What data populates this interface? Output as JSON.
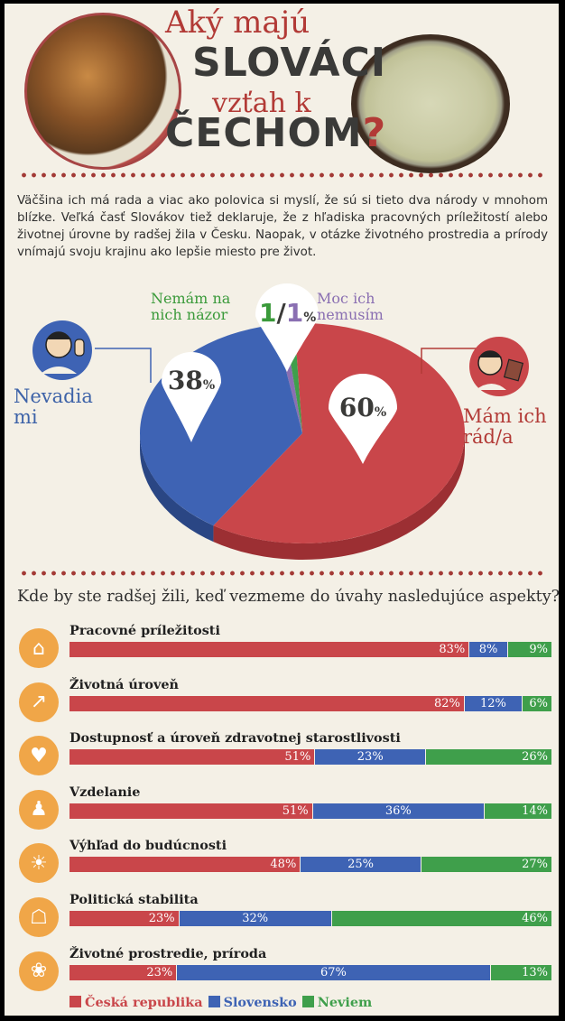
{
  "title": {
    "line1": "Aký majú",
    "line2": "SLOVÁCI",
    "line3": "vzťah k",
    "line4": "ČECHOM",
    "question_mark": "?"
  },
  "intro": "Väčšina ich má rada a viac ako polovica si myslí, že sú si tieto dva národy v mnohom blízke. Veľká časť Slovákov tiež deklaruje, že z hľadiska pracovných príležitostí alebo životnej úrovne by radšej žila v Česku. Naopak, v otázke životného prostredia a prírody vnímajú svoju krajinu ako lepšie miesto pre život.",
  "colors": {
    "red": "#c9464a",
    "blue": "#3e63b4",
    "green": "#3f9f4b",
    "purple": "#8a6fb2",
    "orange": "#f0a648"
  },
  "question": "Kde by ste radšej žili, keď vezmeme do úvahy nasledujúce aspekty?",
  "chart_data": [
    {
      "type": "pie",
      "title": "",
      "slices": [
        {
          "label": "Mám ich rád/a",
          "value": 60,
          "color": "#c9464a"
        },
        {
          "label": "Nevadia mi",
          "value": 38,
          "color": "#3e63b4"
        },
        {
          "label": "Nemám na nich názor",
          "value": 1,
          "color": "#3f9f4b"
        },
        {
          "label": "Moc ich nemusím",
          "value": 1,
          "color": "#8a6fb2"
        }
      ],
      "labels": {
        "like": "Mám ich rád/a",
        "dont_mind": "Nevadia mi",
        "no_opinion": "Nemám na nich názor",
        "dont_like": "Moc ich nemusím"
      },
      "pin_labels": {
        "blue_value": "38",
        "red_value": "60",
        "small_green": "1",
        "slash": "/",
        "small_purple": "1",
        "percent": "%"
      }
    },
    {
      "type": "bar",
      "title": "Kde by ste radšej žili, keď vezmeme do úvahy nasledujúce aspekty?",
      "stacked": true,
      "orientation": "horizontal",
      "categories": [
        "Pracovné príležitosti",
        "Životná úroveň",
        "Dostupnosť a úroveň zdravotnej starostlivosti",
        "Vzdelanie",
        "Výhľad do budúcnosti",
        "Politická stabilita",
        "Životné prostredie, príroda"
      ],
      "icons": [
        "factory-icon",
        "trend-up-icon",
        "heartbeat-icon",
        "graduate-icon",
        "lightbulb-icon",
        "government-building-icon",
        "flower-icon"
      ],
      "series": [
        {
          "name": "Česká republika",
          "color": "#c9464a",
          "values": [
            83,
            82,
            51,
            51,
            48,
            23,
            23
          ]
        },
        {
          "name": "Slovensko",
          "color": "#3e63b4",
          "values": [
            8,
            12,
            23,
            36,
            25,
            32,
            67
          ]
        },
        {
          "name": "Neviem",
          "color": "#3f9f4b",
          "values": [
            9,
            6,
            26,
            14,
            27,
            46,
            13
          ]
        }
      ],
      "value_suffix": "%",
      "legend": "bottom-left"
    }
  ]
}
